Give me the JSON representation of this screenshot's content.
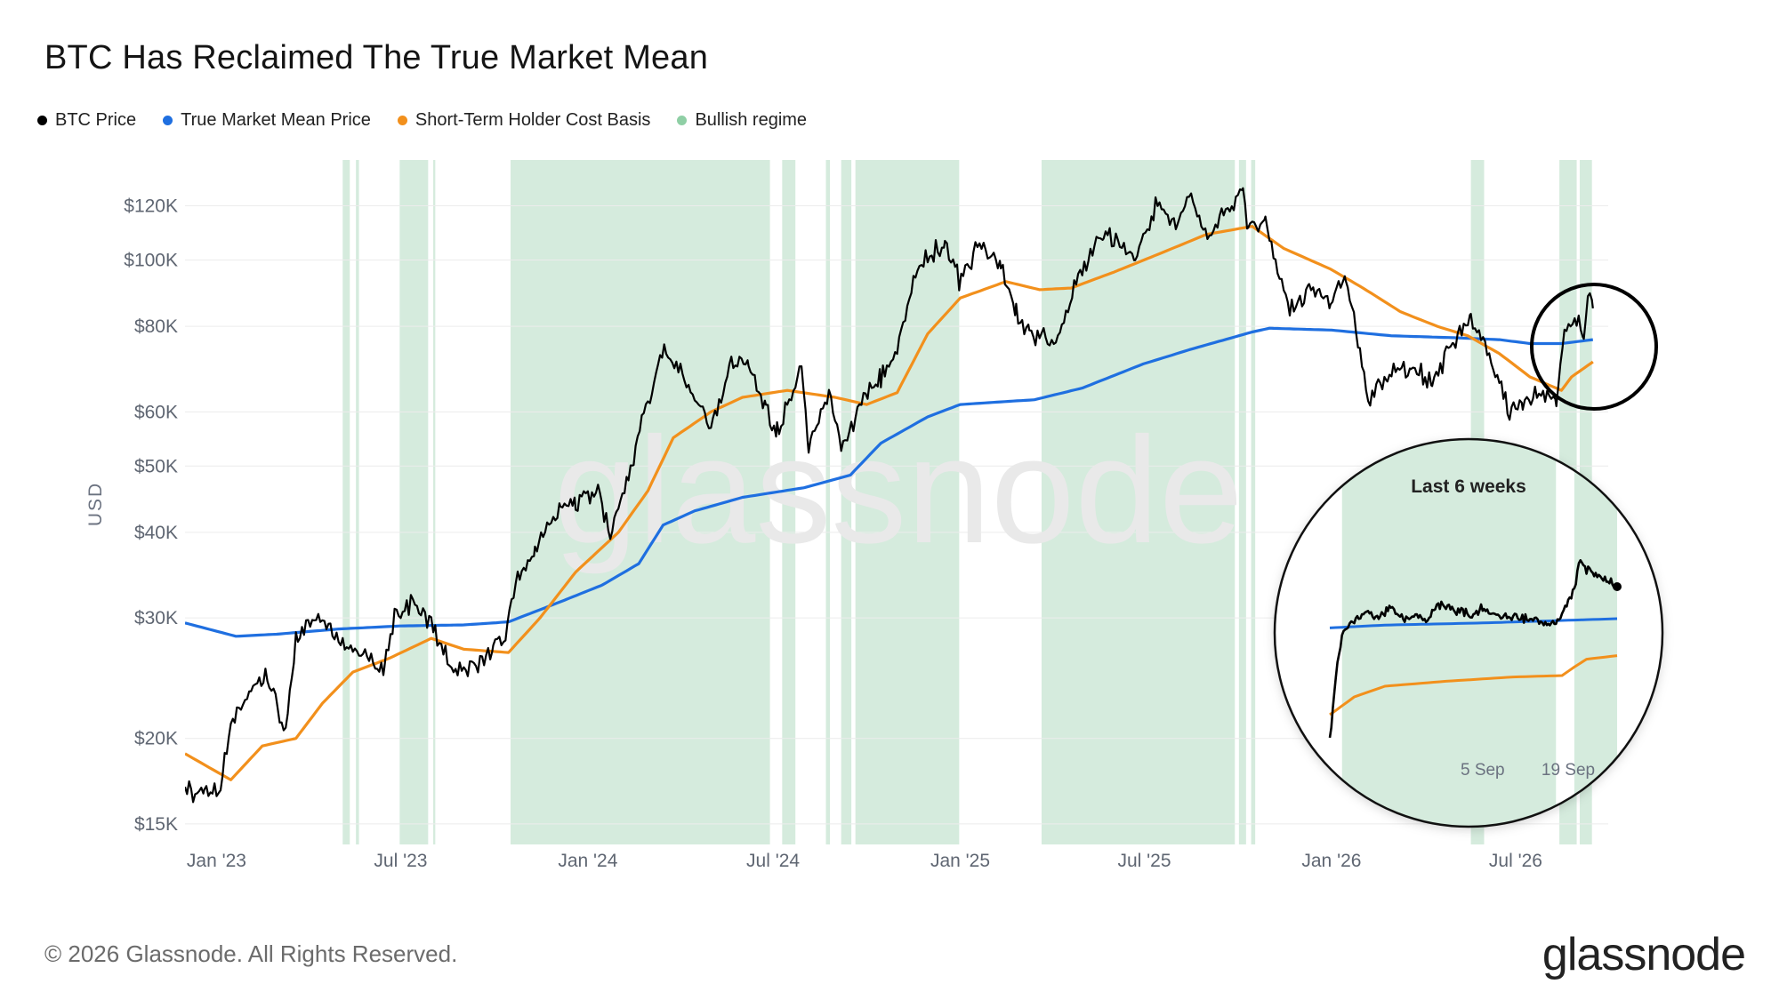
{
  "title": "BTC Has Reclaimed The True Market Mean",
  "footer": "© 2026 Glassnode. All Rights Reserved.",
  "logo": "glassnode",
  "watermark": "glassnode",
  "colors": {
    "btc": "#000000",
    "tmm": "#1f6fe0",
    "sth": "#f2901c",
    "bullish": "#d5ebdd"
  },
  "legend": [
    {
      "label": "BTC Price",
      "color": "#000000"
    },
    {
      "label": "True Market Mean Price",
      "color": "#1f6fe0"
    },
    {
      "label": "Short-Term Holder Cost Basis",
      "color": "#f2901c"
    },
    {
      "label": "Bullish regime",
      "color": "#8fcfa5"
    }
  ],
  "chart_data": {
    "type": "line",
    "ylabel": "USD",
    "y_scale": "log",
    "ylim": [
      14000,
      140000
    ],
    "xlim": [
      "2022-12-01",
      "2026-09-30"
    ],
    "y_ticks": [
      {
        "value": 15000,
        "label": "$15K"
      },
      {
        "value": 20000,
        "label": "$20K"
      },
      {
        "value": 30000,
        "label": "$30K"
      },
      {
        "value": 40000,
        "label": "$40K"
      },
      {
        "value": 50000,
        "label": "$50K"
      },
      {
        "value": 60000,
        "label": "$60K"
      },
      {
        "value": 80000,
        "label": "$80K"
      },
      {
        "value": 100000,
        "label": "$100K"
      },
      {
        "value": 120000,
        "label": "$120K"
      }
    ],
    "x_ticks": [
      {
        "date": "2023-01-01",
        "label": "Jan '23"
      },
      {
        "date": "2023-07-01",
        "label": "Jul '23"
      },
      {
        "date": "2024-01-01",
        "label": "Jan '24"
      },
      {
        "date": "2024-07-01",
        "label": "Jul '24"
      },
      {
        "date": "2025-01-01",
        "label": "Jan '25"
      },
      {
        "date": "2025-07-01",
        "label": "Jul '25"
      },
      {
        "date": "2026-01-01",
        "label": "Jan '26"
      },
      {
        "date": "2026-07-01",
        "label": "Jul '26"
      }
    ],
    "bullish_regime": [
      [
        "2023-05-05",
        "2023-05-12"
      ],
      [
        "2023-05-18",
        "2023-05-21"
      ],
      [
        "2023-06-30",
        "2023-07-28"
      ],
      [
        "2023-08-02",
        "2023-08-04"
      ],
      [
        "2023-10-17",
        "2024-06-28"
      ],
      [
        "2024-07-10",
        "2024-07-23"
      ],
      [
        "2024-08-22",
        "2024-08-26"
      ],
      [
        "2024-09-06",
        "2024-09-16"
      ],
      [
        "2024-09-20",
        "2024-12-31"
      ],
      [
        "2025-03-22",
        "2025-09-28"
      ],
      [
        "2025-10-02",
        "2025-10-09"
      ],
      [
        "2025-10-14",
        "2025-10-18"
      ],
      [
        "2026-05-18",
        "2026-05-31"
      ],
      [
        "2026-08-13",
        "2026-08-30"
      ],
      [
        "2026-09-02",
        "2026-09-14"
      ]
    ],
    "series": [
      {
        "name": "BTC Price",
        "color": "#000000",
        "points": [
          [
            "2022-12-01",
            16800
          ],
          [
            "2022-12-20",
            16700
          ],
          [
            "2023-01-05",
            16900
          ],
          [
            "2023-01-15",
            20800
          ],
          [
            "2023-01-31",
            23100
          ],
          [
            "2023-02-20",
            24500
          ],
          [
            "2023-03-10",
            20100
          ],
          [
            "2023-03-20",
            27900
          ],
          [
            "2023-04-13",
            30400
          ],
          [
            "2023-05-01",
            28000
          ],
          [
            "2023-05-25",
            26200
          ],
          [
            "2023-06-15",
            25100
          ],
          [
            "2023-06-25",
            30500
          ],
          [
            "2023-07-13",
            31400
          ],
          [
            "2023-07-31",
            29200
          ],
          [
            "2023-08-18",
            26000
          ],
          [
            "2023-09-11",
            25100
          ],
          [
            "2023-09-30",
            27000
          ],
          [
            "2023-10-10",
            27400
          ],
          [
            "2023-10-24",
            34500
          ],
          [
            "2023-11-10",
            37300
          ],
          [
            "2023-12-05",
            44000
          ],
          [
            "2023-12-20",
            43800
          ],
          [
            "2024-01-11",
            46500
          ],
          [
            "2024-01-23",
            39500
          ],
          [
            "2024-02-15",
            51800
          ],
          [
            "2024-02-29",
            62000
          ],
          [
            "2024-03-14",
            73000
          ],
          [
            "2024-04-01",
            69000
          ],
          [
            "2024-04-13",
            63000
          ],
          [
            "2024-05-01",
            57000
          ],
          [
            "2024-05-21",
            71000
          ],
          [
            "2024-06-07",
            70800
          ],
          [
            "2024-06-24",
            60000
          ],
          [
            "2024-07-05",
            56000
          ],
          [
            "2024-07-29",
            69000
          ],
          [
            "2024-08-05",
            54000
          ],
          [
            "2024-08-25",
            64000
          ],
          [
            "2024-09-06",
            53000
          ],
          [
            "2024-09-30",
            64000
          ],
          [
            "2024-10-15",
            67000
          ],
          [
            "2024-10-29",
            72000
          ],
          [
            "2024-11-12",
            88000
          ],
          [
            "2024-11-22",
            98000
          ],
          [
            "2024-12-17",
            106000
          ],
          [
            "2024-12-31",
            93400
          ],
          [
            "2025-01-20",
            106000
          ],
          [
            "2025-02-10",
            97000
          ],
          [
            "2025-02-25",
            84000
          ],
          [
            "2025-03-10",
            78000
          ],
          [
            "2025-04-07",
            76000
          ],
          [
            "2025-04-25",
            94000
          ],
          [
            "2025-05-22",
            111000
          ],
          [
            "2025-06-22",
            100000
          ],
          [
            "2025-07-14",
            122000
          ],
          [
            "2025-08-02",
            113000
          ],
          [
            "2025-08-14",
            124000
          ],
          [
            "2025-09-01",
            108000
          ],
          [
            "2025-09-15",
            116000
          ],
          [
            "2025-10-06",
            125000
          ],
          [
            "2025-10-11",
            112000
          ],
          [
            "2025-10-28",
            114000
          ],
          [
            "2025-11-21",
            84000
          ],
          [
            "2025-12-10",
            92000
          ],
          [
            "2025-12-31",
            87500
          ],
          [
            "2026-01-15",
            95000
          ],
          [
            "2026-02-06",
            63000
          ],
          [
            "2026-02-25",
            68000
          ],
          [
            "2026-03-20",
            70000
          ],
          [
            "2026-04-10",
            66000
          ],
          [
            "2026-05-01",
            76000
          ],
          [
            "2026-05-18",
            82000
          ],
          [
            "2026-06-05",
            72000
          ],
          [
            "2026-06-25",
            60000
          ],
          [
            "2026-07-08",
            62000
          ],
          [
            "2026-07-28",
            64000
          ],
          [
            "2026-08-10",
            62000
          ],
          [
            "2026-08-18",
            80000
          ],
          [
            "2026-09-01",
            82000
          ],
          [
            "2026-09-06",
            78000
          ],
          [
            "2026-09-10",
            88000
          ],
          [
            "2026-09-15",
            85000
          ]
        ]
      },
      {
        "name": "True Market Mean Price",
        "color": "#1f6fe0",
        "points": [
          [
            "2022-12-01",
            29500
          ],
          [
            "2023-01-20",
            28200
          ],
          [
            "2023-03-01",
            28400
          ],
          [
            "2023-05-01",
            28900
          ],
          [
            "2023-07-01",
            29200
          ],
          [
            "2023-09-01",
            29300
          ],
          [
            "2023-10-15",
            29600
          ],
          [
            "2023-12-01",
            31500
          ],
          [
            "2024-01-15",
            33500
          ],
          [
            "2024-02-20",
            36000
          ],
          [
            "2024-03-15",
            41000
          ],
          [
            "2024-04-15",
            43000
          ],
          [
            "2024-06-01",
            45000
          ],
          [
            "2024-08-01",
            46500
          ],
          [
            "2024-09-15",
            48500
          ],
          [
            "2024-10-15",
            54000
          ],
          [
            "2024-11-30",
            59000
          ],
          [
            "2025-01-01",
            61500
          ],
          [
            "2025-03-15",
            62500
          ],
          [
            "2025-05-01",
            65000
          ],
          [
            "2025-06-30",
            70500
          ],
          [
            "2025-08-15",
            74000
          ],
          [
            "2025-10-15",
            78500
          ],
          [
            "2025-11-01",
            79500
          ],
          [
            "2026-01-01",
            79000
          ],
          [
            "2026-03-01",
            77500
          ],
          [
            "2026-05-01",
            77000
          ],
          [
            "2026-06-15",
            76500
          ],
          [
            "2026-07-15",
            75500
          ],
          [
            "2026-08-15",
            75500
          ],
          [
            "2026-09-15",
            76500
          ]
        ]
      },
      {
        "name": "Short-Term Holder Cost Basis",
        "color": "#f2901c",
        "points": [
          [
            "2022-12-01",
            19000
          ],
          [
            "2023-01-15",
            17400
          ],
          [
            "2023-02-15",
            19500
          ],
          [
            "2023-03-20",
            20000
          ],
          [
            "2023-04-15",
            22500
          ],
          [
            "2023-05-15",
            25000
          ],
          [
            "2023-06-20",
            26200
          ],
          [
            "2023-07-31",
            28000
          ],
          [
            "2023-09-01",
            27000
          ],
          [
            "2023-10-15",
            26700
          ],
          [
            "2023-11-15",
            30000
          ],
          [
            "2023-12-20",
            35000
          ],
          [
            "2024-01-31",
            40000
          ],
          [
            "2024-02-29",
            46000
          ],
          [
            "2024-03-25",
            55000
          ],
          [
            "2024-05-01",
            60000
          ],
          [
            "2024-06-01",
            63000
          ],
          [
            "2024-07-15",
            64500
          ],
          [
            "2024-08-31",
            63000
          ],
          [
            "2024-10-01",
            61500
          ],
          [
            "2024-10-31",
            64000
          ],
          [
            "2024-11-30",
            78000
          ],
          [
            "2025-01-01",
            88000
          ],
          [
            "2025-02-15",
            93000
          ],
          [
            "2025-03-20",
            90500
          ],
          [
            "2025-04-20",
            91000
          ],
          [
            "2025-06-01",
            96000
          ],
          [
            "2025-07-15",
            102000
          ],
          [
            "2025-08-31",
            109000
          ],
          [
            "2025-10-15",
            112000
          ],
          [
            "2025-11-15",
            104000
          ],
          [
            "2025-12-31",
            97000
          ],
          [
            "2026-02-01",
            91000
          ],
          [
            "2026-03-10",
            84000
          ],
          [
            "2026-04-15",
            80000
          ],
          [
            "2026-05-15",
            77500
          ],
          [
            "2026-06-15",
            73000
          ],
          [
            "2026-07-15",
            67500
          ],
          [
            "2026-08-15",
            64500
          ],
          [
            "2026-08-25",
            67500
          ],
          [
            "2026-09-15",
            71000
          ]
        ]
      }
    ],
    "inset": {
      "title": "Last 6 weeks",
      "x_ticks": [
        {
          "date": "2026-09-05",
          "label": "5 Sep"
        },
        {
          "date": "2026-09-19",
          "label": "19 Sep"
        }
      ],
      "xlim": [
        "2026-08-11",
        "2026-09-27"
      ],
      "ylim": [
        62000,
        92000
      ],
      "bullish_regime": [
        [
          "2026-08-13",
          "2026-09-17"
        ],
        [
          "2026-09-20",
          "2026-09-27"
        ]
      ],
      "series": [
        {
          "name": "BTC Price",
          "color": "#000000",
          "points": [
            [
              "2026-08-11",
              63000
            ],
            [
              "2026-08-12",
              72000
            ],
            [
              "2026-08-13",
              78000
            ],
            [
              "2026-08-15",
              79500
            ],
            [
              "2026-08-17",
              81000
            ],
            [
              "2026-08-19",
              80000
            ],
            [
              "2026-08-21",
              81500
            ],
            [
              "2026-08-23",
              79800
            ],
            [
              "2026-08-25",
              80500
            ],
            [
              "2026-08-27",
              80000
            ],
            [
              "2026-08-29",
              82000
            ],
            [
              "2026-09-01",
              81200
            ],
            [
              "2026-09-03",
              80500
            ],
            [
              "2026-09-05",
              81500
            ],
            [
              "2026-09-08",
              80200
            ],
            [
              "2026-09-11",
              80300
            ],
            [
              "2026-09-14",
              79500
            ],
            [
              "2026-09-16",
              79200
            ],
            [
              "2026-09-18",
              80200
            ],
            [
              "2026-09-19",
              83000
            ],
            [
              "2026-09-20",
              84000
            ],
            [
              "2026-09-21",
              88500
            ],
            [
              "2026-09-22",
              87000
            ],
            [
              "2026-09-24",
              86000
            ],
            [
              "2026-09-26",
              85000
            ],
            [
              "2026-09-27",
              84500
            ]
          ]
        },
        {
          "name": "True Market Mean Price",
          "color": "#1f6fe0",
          "points": [
            [
              "2026-08-11",
              78700
            ],
            [
              "2026-08-20",
              79100
            ],
            [
              "2026-09-05",
              79400
            ],
            [
              "2026-09-20",
              79800
            ],
            [
              "2026-09-27",
              80000
            ]
          ]
        },
        {
          "name": "Short-Term Holder Cost Basis",
          "color": "#f2901c",
          "points": [
            [
              "2026-08-11",
              66500
            ],
            [
              "2026-08-15",
              69000
            ],
            [
              "2026-08-20",
              70500
            ],
            [
              "2026-08-30",
              71200
            ],
            [
              "2026-09-10",
              71800
            ],
            [
              "2026-09-18",
              72000
            ],
            [
              "2026-09-20",
              73200
            ],
            [
              "2026-09-22",
              74300
            ],
            [
              "2026-09-27",
              74800
            ]
          ]
        }
      ]
    }
  }
}
